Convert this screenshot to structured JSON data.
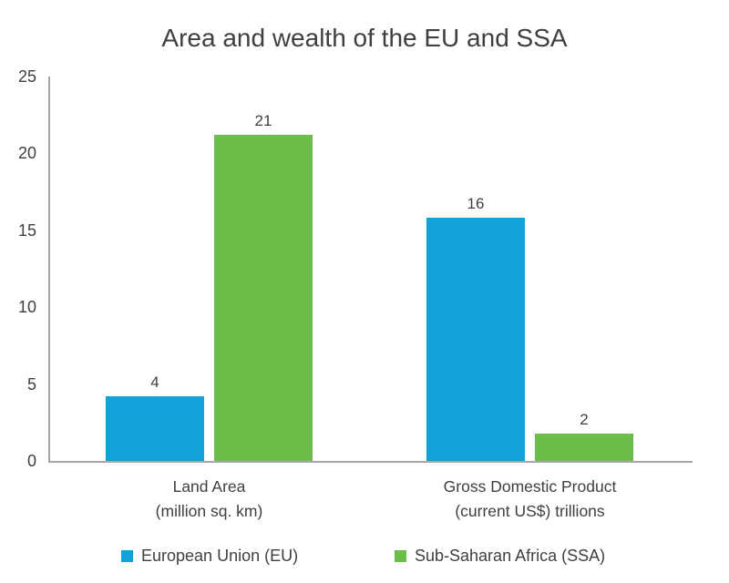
{
  "chart_data": {
    "type": "bar",
    "title": "Area and wealth of the EU and SSA",
    "categories": [
      {
        "line1": "Land Area",
        "line2": "(million sq. km)"
      },
      {
        "line1": "Gross Domestic Product",
        "line2": "(current US$) trillions"
      }
    ],
    "series": [
      {
        "name": "European Union (EU)",
        "color": "#12A2D8",
        "values": [
          4.2,
          15.8
        ],
        "value_labels": [
          "4",
          "16"
        ]
      },
      {
        "name": "Sub-Saharan Africa (SSA)",
        "color": "#6CBE4B",
        "values": [
          21.2,
          1.8
        ],
        "value_labels": [
          "21",
          "2"
        ]
      }
    ],
    "ylim": [
      0,
      25
    ],
    "yticks": [
      "0",
      "5",
      "10",
      "15",
      "20",
      "25"
    ],
    "grid": false,
    "legend_position": "bottom",
    "axis_color": "#A6A6A6",
    "text_color": "#3F3F3F"
  }
}
